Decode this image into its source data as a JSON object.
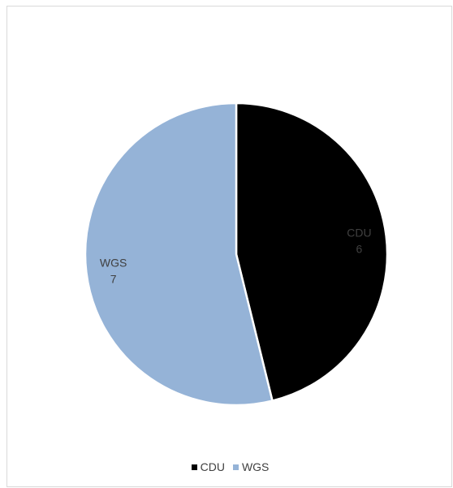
{
  "chart_data": {
    "type": "pie",
    "categories": [
      "CDU",
      "WGS"
    ],
    "values": [
      6,
      7
    ],
    "colors": [
      "#000000",
      "#95b3d7"
    ],
    "data_labels": [
      {
        "category": "CDU",
        "value": "6"
      },
      {
        "category": "WGS",
        "value": "7"
      }
    ],
    "start_angle": "12 o'clock, clockwise",
    "legend_position": "bottom",
    "title": ""
  },
  "legend": {
    "items": [
      {
        "label": "CDU",
        "color": "#000000"
      },
      {
        "label": "WGS",
        "color": "#95b3d7"
      }
    ]
  }
}
